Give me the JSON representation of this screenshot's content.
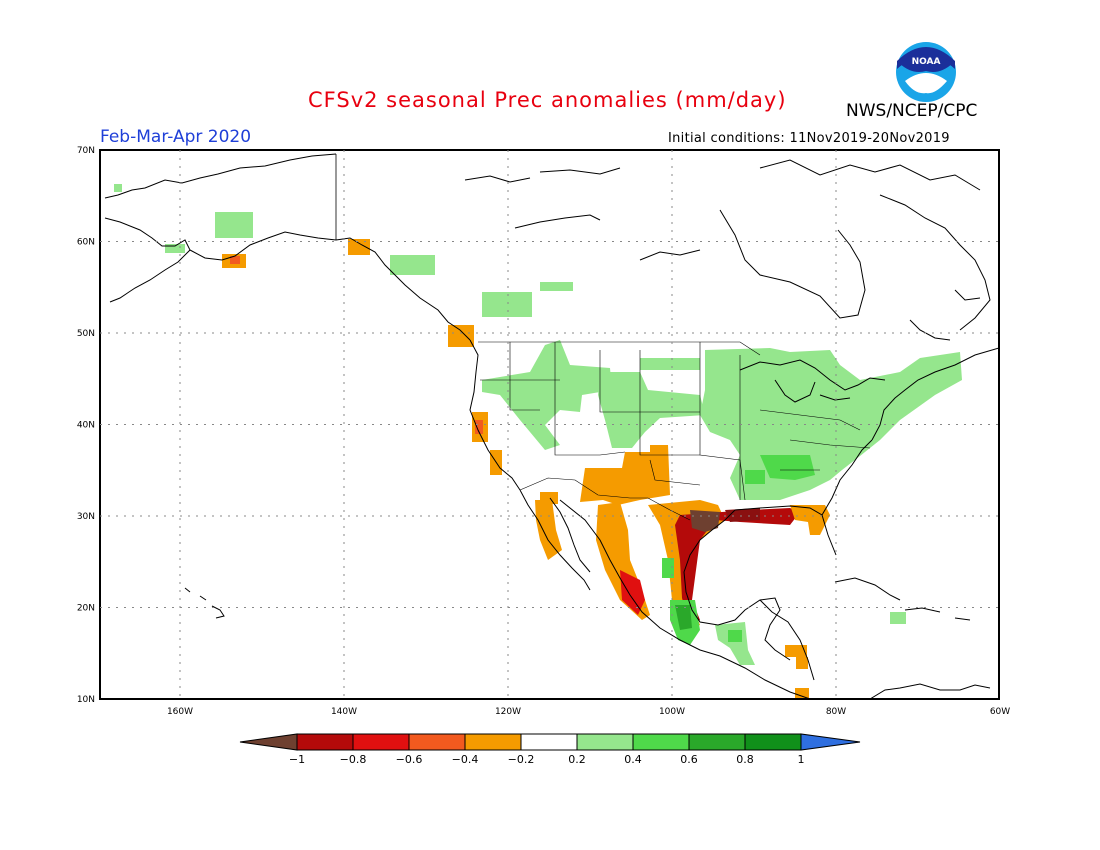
{
  "header": {
    "title": "CFSv2 seasonal Prec anomalies (mm/day)",
    "season": "Feb-Mar-Apr 2020",
    "agency": "NWS/NCEP/CPC",
    "initial_conditions": "Initial conditions: 11Nov2019-20Nov2019",
    "logo_text": "NOAA"
  },
  "map": {
    "lat_labels": [
      "70N",
      "60N",
      "50N",
      "40N",
      "30N",
      "20N",
      "10N"
    ],
    "lon_labels": [
      "160W",
      "140W",
      "120W",
      "100W",
      "80W",
      "60W"
    ]
  },
  "colorbar": {
    "labels": [
      "-1",
      "-0.8",
      "-0.6",
      "-0.4",
      "-0.2",
      "0.2",
      "0.4",
      "0.6",
      "0.8",
      "1"
    ],
    "colors": [
      "#6e4030",
      "#b40a0a",
      "#e01010",
      "#f25a1f",
      "#f59b00",
      "#ffffff",
      "#95e68d",
      "#4fd94a",
      "#2aa82a",
      "#10901a",
      "#2f6fe0"
    ]
  }
}
